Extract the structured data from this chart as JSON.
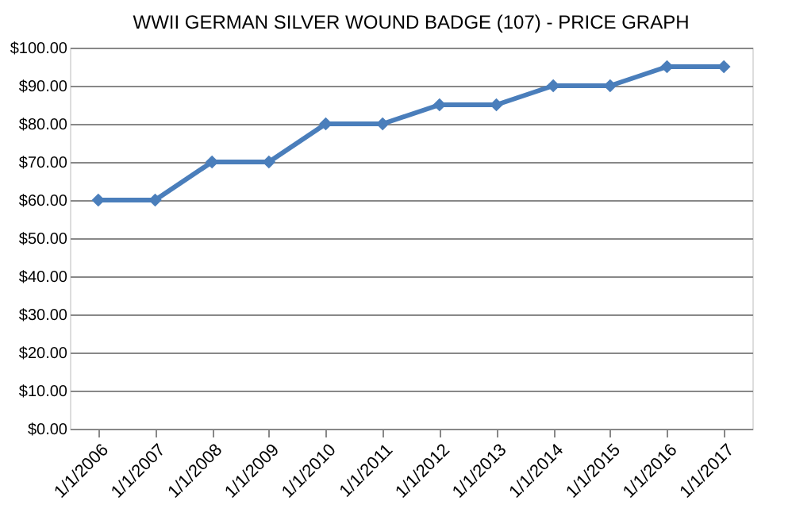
{
  "chart_data": {
    "type": "line",
    "title": "WWII GERMAN SILVER WOUND BADGE (107) - PRICE GRAPH",
    "categories": [
      "1/1/2006",
      "1/1/2007",
      "1/1/2008",
      "1/1/2009",
      "1/1/2010",
      "1/1/2011",
      "1/1/2012",
      "1/1/2013",
      "1/1/2014",
      "1/1/2015",
      "1/1/2016",
      "1/1/2017"
    ],
    "series": [
      {
        "color": "#4a7ebb",
        "values": [
          60,
          60,
          70,
          70,
          80,
          80,
          85,
          85,
          90,
          90,
          95,
          95
        ]
      }
    ],
    "ylim": [
      0,
      100
    ],
    "yticks": [
      {
        "value": 0,
        "label": "$0.00"
      },
      {
        "value": 10,
        "label": "$10.00"
      },
      {
        "value": 20,
        "label": "$20.00"
      },
      {
        "value": 30,
        "label": "$30.00"
      },
      {
        "value": 40,
        "label": "$40.00"
      },
      {
        "value": 50,
        "label": "$50.00"
      },
      {
        "value": 60,
        "label": "$60.00"
      },
      {
        "value": 70,
        "label": "$70.00"
      },
      {
        "value": 80,
        "label": "$80.00"
      },
      {
        "value": 90,
        "label": "$90.00"
      },
      {
        "value": 100,
        "label": "$100.00"
      }
    ],
    "grid": "y",
    "marker": "diamond",
    "line_style": "solid"
  }
}
